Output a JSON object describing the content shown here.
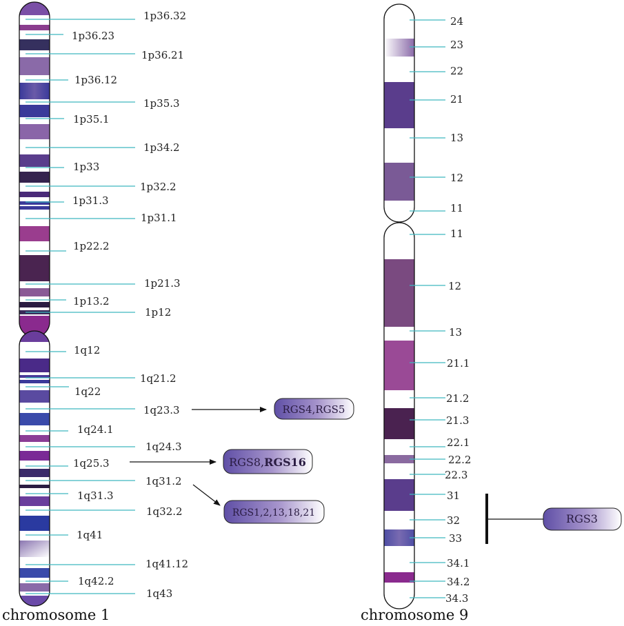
{
  "chromosome1": {
    "caption": "chromosome 1",
    "bands": [
      "1p36.32",
      "1p36.23",
      "1p36.21",
      "1p36.12",
      "1p35.3",
      "1p35.1",
      "1p34.2",
      "1p33",
      "1p32.2",
      "1p31.3",
      "1p31.1",
      "1p22.2",
      "1p21.3",
      "1p13.2",
      "1p12",
      "1q12",
      "1q21.2",
      "1q22",
      "1q23.3",
      "1q24.1",
      "1q24.3",
      "1q25.3",
      "1q31.2",
      "1q31.3",
      "1q32.2",
      "1q41",
      "1q41.12",
      "1q42.2",
      "1q43"
    ],
    "genes": [
      {
        "band": "1q23.3",
        "parts": [
          "RGS4,RGS5"
        ]
      },
      {
        "band": "1q25.3",
        "parts": [
          "RGS8,",
          "RGS16"
        ]
      },
      {
        "band": "1q31.2",
        "parts": [
          "RGS1,2,13,18,21"
        ]
      }
    ]
  },
  "chromosome9": {
    "caption": "chromosome 9",
    "bands": [
      "24",
      "23",
      "22",
      "21",
      "13",
      "12",
      "11",
      "11",
      "12",
      "13",
      "21.1",
      "21.2",
      "21.3",
      "22.1",
      "22.2",
      "22.3",
      "31",
      "32",
      "33",
      "34.1",
      "34.2",
      "34.3"
    ],
    "genes": [
      {
        "band": "32",
        "parts": [
          "RGS3"
        ]
      }
    ]
  },
  "colors": {
    "band_purple": "#5a3d8c",
    "band_dark": "#3d2058",
    "band_magenta": "#9a3d8e",
    "band_blue": "#3a3a9a",
    "leader_line": "#3fb8bf"
  }
}
